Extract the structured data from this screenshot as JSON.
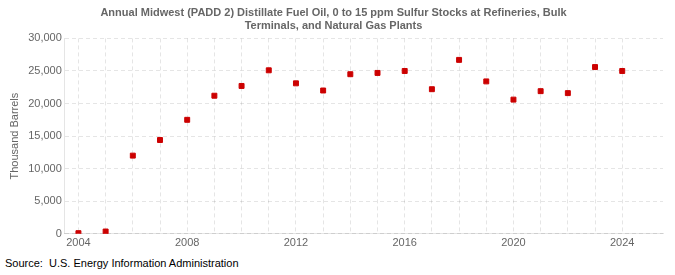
{
  "chart_data": {
    "type": "scatter",
    "title": "Annual Midwest (PADD 2) Distillate Fuel Oil, 0 to 15 ppm Sulfur Stocks at Refineries, Bulk\nTerminals, and Natural Gas Plants",
    "ylabel": "Thousand Barrels",
    "source": "Source:  U.S. Energy Information Administration",
    "x": [
      2004,
      2005,
      2006,
      2007,
      2008,
      2009,
      2010,
      2011,
      2012,
      2013,
      2014,
      2015,
      2016,
      2017,
      2018,
      2019,
      2020,
      2021,
      2022,
      2023,
      2024
    ],
    "values": [
      100,
      350,
      12000,
      14400,
      17500,
      21200,
      22700,
      25100,
      23100,
      22000,
      24500,
      24700,
      25000,
      22200,
      26700,
      23400,
      20600,
      21900,
      21600,
      25600,
      25000
    ],
    "color": "#cc0000",
    "marker": "square",
    "xlim": [
      2003.5,
      2025.5
    ],
    "xticks": [
      2004,
      2008,
      2012,
      2016,
      2020,
      2024
    ],
    "ylim": [
      0,
      30000
    ],
    "yticks": [
      0,
      {
        "value": 5000,
        "label": "5,000"
      },
      {
        "value": 10000,
        "label": "10,000"
      },
      {
        "value": 15000,
        "label": "15,000"
      },
      {
        "value": 20000,
        "label": "20,000"
      },
      {
        "value": 25000,
        "label": "25,000"
      },
      {
        "value": 30000,
        "label": "30,000"
      }
    ],
    "grid": true
  }
}
